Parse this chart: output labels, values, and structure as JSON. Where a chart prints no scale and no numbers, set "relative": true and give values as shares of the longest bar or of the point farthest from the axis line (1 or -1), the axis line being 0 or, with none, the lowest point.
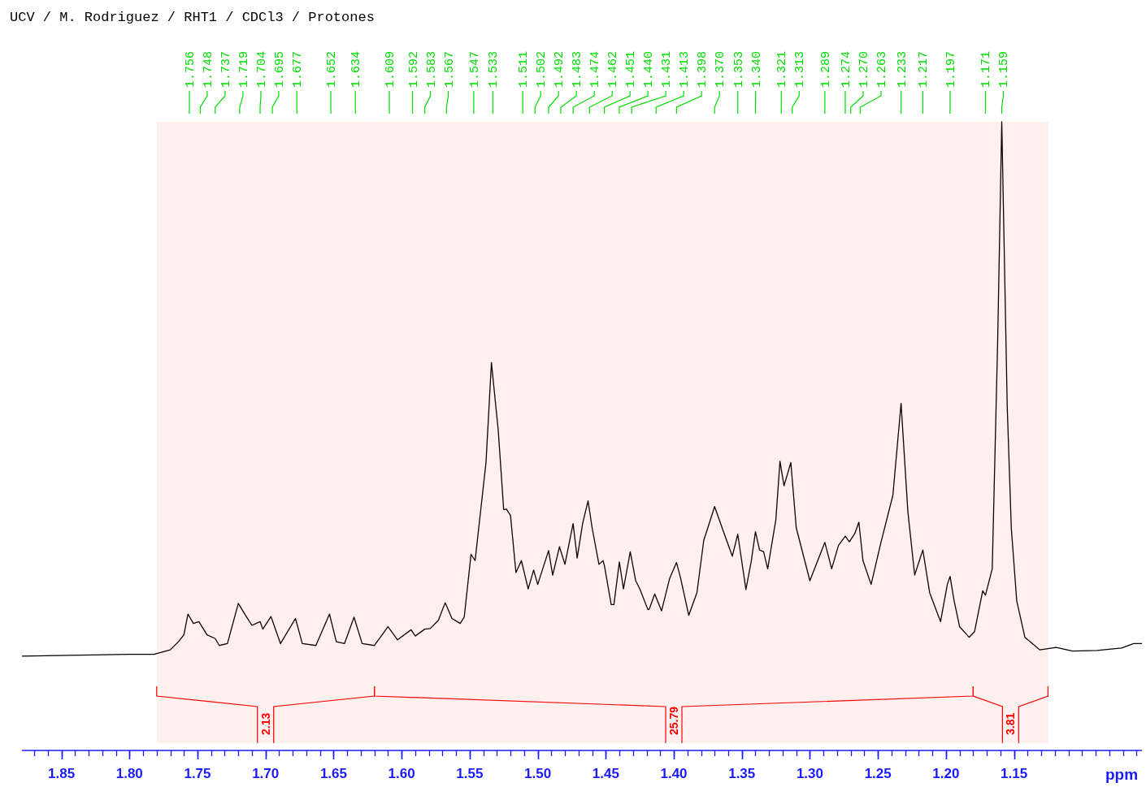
{
  "chart_data": {
    "type": "line",
    "title": "UCV / M. Rodriguez / RHT1 / CDCl3 / Protones",
    "xlabel": "ppm",
    "relative": true,
    "grid": false,
    "line_style": "solid",
    "xlim": [
      1.879,
      1.056
    ],
    "xticks": [
      1.85,
      {
        "value": 1.8,
        "label": "1.80"
      },
      1.75,
      {
        "value": 1.7,
        "label": "1.70"
      },
      1.65,
      {
        "value": 1.6,
        "label": "1.60"
      },
      1.55,
      {
        "value": 1.5,
        "label": "1.50"
      },
      1.45,
      {
        "value": 1.4,
        "label": "1.40"
      },
      1.35,
      {
        "value": 1.3,
        "label": "1.30"
      },
      1.25,
      {
        "value": 1.2,
        "label": "1.20"
      },
      1.15
    ],
    "series": [
      {
        "color": "#000000",
        "x": [
          1.879,
          1.8,
          1.782,
          1.77,
          1.764,
          1.76,
          1.757,
          1.753,
          1.749,
          1.743,
          1.737,
          1.734,
          1.728,
          1.72,
          1.715,
          1.71,
          1.704,
          1.702,
          1.696,
          1.689,
          1.678,
          1.673,
          1.663,
          1.653,
          1.648,
          1.642,
          1.635,
          1.629,
          1.62,
          1.61,
          1.603,
          1.593,
          1.59,
          1.583,
          1.579,
          1.573,
          1.568,
          1.563,
          1.557,
          1.554,
          1.549,
          1.546,
          1.538,
          1.534,
          1.529,
          1.525,
          1.523,
          1.52,
          1.516,
          1.512,
          1.507,
          1.503,
          1.5,
          1.492,
          1.489,
          1.484,
          1.48,
          1.474,
          1.471,
          1.467,
          1.463,
          1.46,
          1.455,
          1.452,
          1.451,
          1.446,
          1.444,
          1.44,
          1.437,
          1.432,
          1.428,
          1.425,
          1.419,
          1.418,
          1.414,
          1.409,
          1.403,
          1.398,
          1.395,
          1.389,
          1.383,
          1.378,
          1.37,
          1.364,
          1.357,
          1.353,
          1.347,
          1.343,
          1.34,
          1.337,
          1.334,
          1.331,
          1.325,
          1.322,
          1.319,
          1.314,
          1.31,
          1.3,
          1.289,
          1.284,
          1.279,
          1.274,
          1.271,
          1.267,
          1.264,
          1.261,
          1.255,
          1.248,
          1.239,
          1.233,
          1.228,
          1.223,
          1.217,
          1.212,
          1.204,
          1.199,
          1.197,
          1.194,
          1.19,
          1.183,
          1.179,
          1.173,
          1.171,
          1.166,
          1.162,
          1.159,
          1.155,
          1.152,
          1.148,
          1.142,
          1.131,
          1.119,
          1.107,
          1.089,
          1.071,
          1.062,
          1.056
        ],
        "values": [
          0.15,
          0.153,
          0.153,
          0.16,
          0.173,
          0.184,
          0.217,
          0.202,
          0.205,
          0.184,
          0.178,
          0.167,
          0.17,
          0.234,
          0.216,
          0.199,
          0.205,
          0.193,
          0.213,
          0.17,
          0.21,
          0.17,
          0.167,
          0.217,
          0.173,
          0.17,
          0.212,
          0.17,
          0.167,
          0.197,
          0.176,
          0.192,
          0.182,
          0.193,
          0.194,
          0.207,
          0.235,
          0.21,
          0.202,
          0.212,
          0.312,
          0.302,
          0.458,
          0.617,
          0.509,
          0.383,
          0.384,
          0.374,
          0.283,
          0.302,
          0.257,
          0.287,
          0.264,
          0.318,
          0.279,
          0.324,
          0.296,
          0.361,
          0.306,
          0.361,
          0.397,
          0.354,
          0.296,
          0.302,
          0.294,
          0.232,
          0.232,
          0.3,
          0.257,
          0.316,
          0.27,
          0.257,
          0.224,
          0.225,
          0.249,
          0.222,
          0.274,
          0.299,
          0.274,
          0.215,
          0.251,
          0.334,
          0.388,
          0.351,
          0.309,
          0.344,
          0.256,
          0.302,
          0.348,
          0.319,
          0.316,
          0.289,
          0.367,
          0.46,
          0.421,
          0.458,
          0.354,
          0.27,
          0.331,
          0.289,
          0.326,
          0.341,
          0.332,
          0.345,
          0.363,
          0.302,
          0.264,
          0.329,
          0.406,
          0.552,
          0.38,
          0.279,
          0.319,
          0.251,
          0.205,
          0.264,
          0.277,
          0.238,
          0.197,
          0.18,
          0.189,
          0.254,
          0.247,
          0.289,
          0.652,
          1,
          0.548,
          0.354,
          0.238,
          0.18,
          0.16,
          0.164,
          0.158,
          0.159,
          0.163,
          0.17,
          0.17
        ]
      }
    ],
    "annotations": [
      {
        "text": "1.756",
        "x": 1.756
      },
      {
        "text": "1.748",
        "x": 1.748
      },
      {
        "text": "1.737",
        "x": 1.737
      },
      {
        "text": "1.719",
        "x": 1.719
      },
      {
        "text": "1.704",
        "x": 1.704
      },
      {
        "text": "1.695",
        "x": 1.695
      },
      {
        "text": "1.677",
        "x": 1.677
      },
      {
        "text": "1.652",
        "x": 1.652
      },
      {
        "text": "1.634",
        "x": 1.634
      },
      {
        "text": "1.609",
        "x": 1.609
      },
      {
        "text": "1.592",
        "x": 1.592
      },
      {
        "text": "1.583",
        "x": 1.583
      },
      {
        "text": "1.567",
        "x": 1.567
      },
      {
        "text": "1.547",
        "x": 1.547
      },
      {
        "text": "1.533",
        "x": 1.533
      },
      {
        "text": "1.511",
        "x": 1.511
      },
      {
        "text": "1.502",
        "x": 1.502
      },
      {
        "text": "1.492",
        "x": 1.492
      },
      {
        "text": "1.483",
        "x": 1.483
      },
      {
        "text": "1.474",
        "x": 1.474
      },
      {
        "text": "1.462",
        "x": 1.462
      },
      {
        "text": "1.451",
        "x": 1.451
      },
      {
        "text": "1.440",
        "x": 1.44
      },
      {
        "text": "1.431",
        "x": 1.431
      },
      {
        "text": "1.413",
        "x": 1.413
      },
      {
        "text": "1.398",
        "x": 1.398
      },
      {
        "text": "1.370",
        "x": 1.37
      },
      {
        "text": "1.353",
        "x": 1.353
      },
      {
        "text": "1.340",
        "x": 1.34
      },
      {
        "text": "1.321",
        "x": 1.321
      },
      {
        "text": "1.313",
        "x": 1.313
      },
      {
        "text": "1.289",
        "x": 1.289
      },
      {
        "text": "1.274",
        "x": 1.274
      },
      {
        "text": "1.270",
        "x": 1.27
      },
      {
        "text": "1.263",
        "x": 1.263
      },
      {
        "text": "1.233",
        "x": 1.233
      },
      {
        "text": "1.217",
        "x": 1.217
      },
      {
        "text": "1.197",
        "x": 1.197
      },
      {
        "text": "1.171",
        "x": 1.171
      },
      {
        "text": "1.159",
        "x": 1.159
      }
    ],
    "bands": [
      {
        "axis": "x",
        "from": 1.78,
        "to": 1.62,
        "label": "2.13",
        "color": "#ff0000"
      },
      {
        "axis": "x",
        "from": 1.62,
        "to": 1.18,
        "label": "25.79",
        "color": "#ff0000"
      },
      {
        "axis": "x",
        "from": 1.18,
        "to": 1.125,
        "label": "3.81",
        "color": "#ff0000"
      }
    ]
  }
}
